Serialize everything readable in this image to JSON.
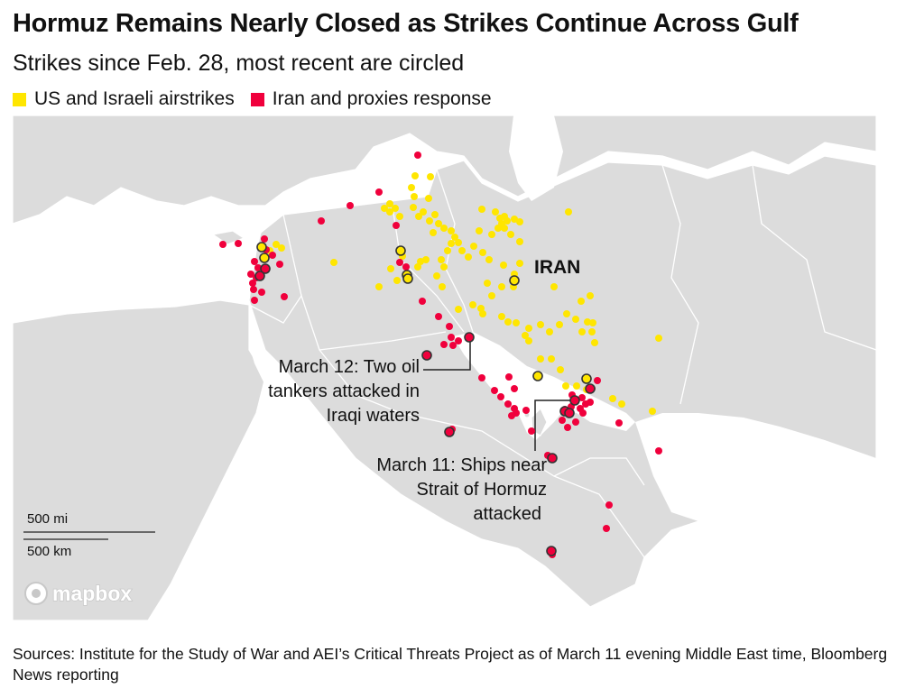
{
  "header": {
    "title": "Hormuz Remains Nearly Closed as Strikes Continue Across Gulf",
    "subtitle": "Strikes since Feb. 28, most recent are circled"
  },
  "legend": [
    {
      "label": "US and Israeli airstrikes",
      "color": "#ffe600"
    },
    {
      "label": "Iran and proxies response",
      "color": "#f0003c"
    }
  ],
  "colors": {
    "land": "#dcdcdc",
    "water": "#ffffff",
    "border": "#ffffff",
    "yellow": "#ffe600",
    "red": "#f0003c",
    "recent_ring": "#333333"
  },
  "map": {
    "country_label": "IRAN",
    "annotations": {
      "march12": [
        "March 12: Two oil",
        "tankers attacked in",
        "Iraqi waters"
      ],
      "march11": [
        "March 11: Ships near",
        "Strait of Hormuz",
        "attacked"
      ]
    },
    "scale": {
      "miles": "500 mi",
      "km": "500 km"
    },
    "attribution": "mapbox"
  },
  "source": "Sources: Institute for the Study of War and AEI’s Critical Threats Project as of March 11 evening Middle East time, Bloomberg News reporting"
}
